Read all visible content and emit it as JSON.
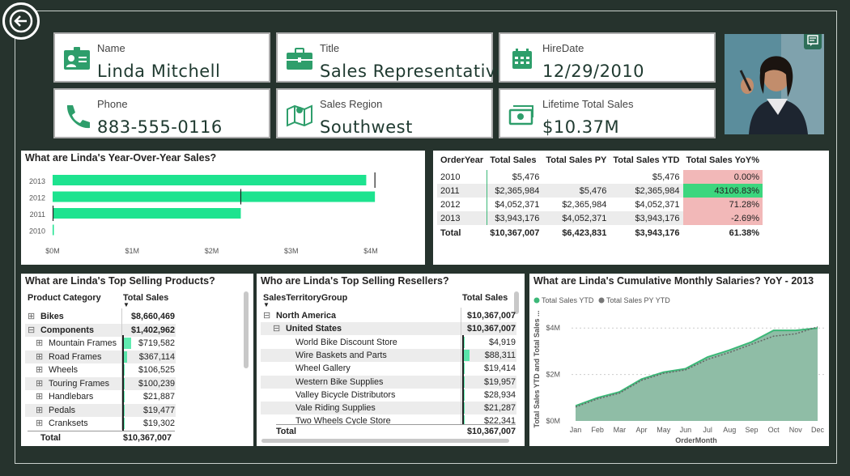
{
  "cards": {
    "name": {
      "label": "Name",
      "value": "Linda Mitchell"
    },
    "title": {
      "label": "Title",
      "value": "Sales Representative"
    },
    "hiredate": {
      "label": "HireDate",
      "value": "12/29/2010"
    },
    "phone": {
      "label": "Phone",
      "value": "883-555-0116"
    },
    "region": {
      "label": "Sales Region",
      "value": "Southwest"
    },
    "lifetime": {
      "label": "Lifetime Total Sales",
      "value": "$10.37M"
    }
  },
  "colors": {
    "accent": "#1de38f",
    "green": "#2e9e6b",
    "pink": "#f2b8b8",
    "greenCell": "#3cd67e",
    "area": "#8fbda6"
  },
  "yoy_chart": {
    "title": "What are Linda's Year-Over-Year Sales?"
  },
  "yoy_table": {
    "headers": [
      "OrderYear",
      "Total Sales",
      "Total Sales PY",
      "Total Sales YTD",
      "Total Sales YoY%"
    ],
    "rows": [
      [
        "2010",
        "$5,476",
        "",
        "$5,476",
        "0.00%"
      ],
      [
        "2011",
        "$2,365,984",
        "$5,476",
        "$2,365,984",
        "43106.83%"
      ],
      [
        "2012",
        "$4,052,371",
        "$2,365,984",
        "$4,052,371",
        "71.28%"
      ],
      [
        "2013",
        "$3,943,176",
        "$4,052,371",
        "$3,943,176",
        "-2.69%"
      ]
    ],
    "total": [
      "Total",
      "$10,367,007",
      "$6,423,831",
      "$3,943,176",
      "61.38%"
    ]
  },
  "products": {
    "title": "What are Linda's Top Selling Products?",
    "col1": "Product Category",
    "col2": "Total Sales",
    "rows": [
      {
        "name": "Bikes",
        "value": "$8,660,469",
        "level": 0,
        "expander": "⊞",
        "share": 0
      },
      {
        "name": "Components",
        "value": "$1,402,962",
        "level": 0,
        "expander": "⊟",
        "share": 0
      },
      {
        "name": "Mountain Frames",
        "value": "$719,582",
        "level": 1,
        "expander": "⊞",
        "share": 0.51
      },
      {
        "name": "Road Frames",
        "value": "$367,114",
        "level": 1,
        "expander": "⊞",
        "share": 0.26
      },
      {
        "name": "Wheels",
        "value": "$106,525",
        "level": 1,
        "expander": "⊞",
        "share": 0.08
      },
      {
        "name": "Touring Frames",
        "value": "$100,239",
        "level": 1,
        "expander": "⊞",
        "share": 0.07
      },
      {
        "name": "Handlebars",
        "value": "$21,887",
        "level": 1,
        "expander": "⊞",
        "share": 0.02
      },
      {
        "name": "Pedals",
        "value": "$19,477",
        "level": 1,
        "expander": "⊞",
        "share": 0.01
      },
      {
        "name": "Cranksets",
        "value": "$19,302",
        "level": 1,
        "expander": "⊞",
        "share": 0.01
      }
    ],
    "total_label": "Total",
    "total_value": "$10,367,007"
  },
  "resellers": {
    "title": "Who are Linda's Top Selling Resellers?",
    "col1": "SalesTerritoryGroup",
    "col2": "Total Sales",
    "rows": [
      {
        "name": "North America",
        "value": "$10,367,007",
        "level": 0,
        "expander": "⊟",
        "share": 0
      },
      {
        "name": "United States",
        "value": "$10,367,007",
        "level": 1,
        "expander": "⊟",
        "share": 0
      },
      {
        "name": "World Bike Discount Store",
        "value": "$4,919",
        "level": 2,
        "expander": "",
        "share": 0.05
      },
      {
        "name": "Wire Baskets and Parts",
        "value": "$88,311",
        "level": 2,
        "expander": "",
        "share": 0.95
      },
      {
        "name": "Wheel Gallery",
        "value": "$19,414",
        "level": 2,
        "expander": "",
        "share": 0.2
      },
      {
        "name": "Western Bike Supplies",
        "value": "$19,957",
        "level": 2,
        "expander": "",
        "share": 0.21
      },
      {
        "name": "Valley Bicycle Distributors",
        "value": "$28,934",
        "level": 2,
        "expander": "",
        "share": 0.31
      },
      {
        "name": "Vale Riding Supplies",
        "value": "$21,287",
        "level": 2,
        "expander": "",
        "share": 0.23
      },
      {
        "name": "Two Wheels Cycle Store",
        "value": "$22,341",
        "level": 2,
        "expander": "",
        "share": 0.24
      }
    ],
    "total_label": "Total",
    "total_value": "$10,367,007"
  },
  "chart_data": [
    {
      "type": "bar",
      "title": "What are Linda's Year-Over-Year Sales?",
      "categories": [
        "2013",
        "2012",
        "2011",
        "2010"
      ],
      "values": [
        3943176,
        4052371,
        2365984,
        5476
      ],
      "reference_py": [
        4052371,
        2365984,
        5476,
        0
      ],
      "xlabel": "",
      "ylabel": "",
      "xticks": [
        "$0M",
        "$1M",
        "$2M",
        "$3M",
        "$4M"
      ],
      "xlim": [
        0,
        4000000
      ]
    },
    {
      "type": "area",
      "title": "What are Linda's Cumulative Monthly Salaries? YoY - 2013",
      "legend": [
        "Total Sales YTD",
        "Total Sales PY YTD"
      ],
      "x": [
        "Jan",
        "Feb",
        "Mar",
        "Apr",
        "May",
        "Jun",
        "Jul",
        "Aug",
        "Sep",
        "Oct",
        "Nov",
        "Dec"
      ],
      "series": [
        {
          "name": "Total Sales YTD",
          "values": [
            0.65,
            1.0,
            1.25,
            1.8,
            2.1,
            2.25,
            2.75,
            3.05,
            3.4,
            3.9,
            3.9,
            4.0
          ]
        },
        {
          "name": "Total Sales PY YTD",
          "values": [
            0.6,
            0.95,
            1.2,
            1.75,
            2.05,
            2.2,
            2.65,
            2.95,
            3.3,
            3.65,
            3.75,
            4.05
          ]
        }
      ],
      "xlabel": "OrderMonth",
      "ylabel": "Total Sales YTD and Total Sales ...",
      "yticks": [
        "$0M",
        "$2M",
        "$4M"
      ],
      "ylim": [
        0,
        4.6
      ]
    }
  ]
}
